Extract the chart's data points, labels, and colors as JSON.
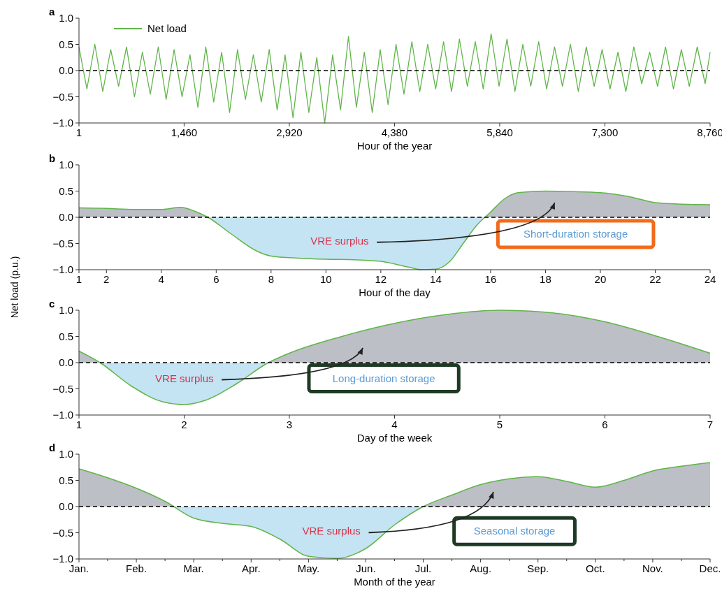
{
  "chart_data": [
    {
      "type": "line",
      "title": "a",
      "xlabel": "Hour of the year",
      "legend": "top left",
      "xlim": [
        1,
        8760
      ],
      "xticks": [
        1,
        {
          "value": 1460,
          "label": "1,460"
        },
        {
          "value": 2920,
          "label": "2,920"
        },
        {
          "value": 4380,
          "label": "4,380"
        },
        {
          "value": 5840,
          "label": "5,840"
        },
        {
          "value": 7300,
          "label": "7,300"
        },
        {
          "value": 8760,
          "label": "8,760"
        }
      ],
      "ylim": [
        -1,
        1
      ],
      "yticks": [
        {
          "value": -1,
          "label": "−1.0"
        },
        {
          "value": -0.5,
          "label": "−0.5"
        },
        {
          "value": 0,
          "label": "0.0"
        },
        {
          "value": 0.5,
          "label": "0.5"
        },
        {
          "value": 1,
          "label": "1.0"
        }
      ],
      "ref_lines": [
        {
          "axis": "y",
          "value": 0,
          "color": "#000000",
          "line_style": "dashed"
        }
      ],
      "series": [
        {
          "name": "Net load",
          "color": "#5fb548",
          "x": [
            1,
            111,
            221,
            331,
            441,
            551,
            661,
            771,
            881,
            991,
            1101,
            1211,
            1321,
            1431,
            1541,
            1651,
            1761,
            1871,
            1981,
            2091,
            2201,
            2311,
            2421,
            2531,
            2641,
            2751,
            2861,
            2971,
            3081,
            3191,
            3301,
            3411,
            3521,
            3631,
            3741,
            3851,
            3961,
            4071,
            4181,
            4291,
            4401,
            4511,
            4621,
            4731,
            4841,
            4951,
            5061,
            5171,
            5281,
            5391,
            5501,
            5611,
            5721,
            5831,
            5941,
            6051,
            6161,
            6271,
            6381,
            6491,
            6601,
            6711,
            6821,
            6931,
            7041,
            7151,
            7261,
            7371,
            7481,
            7591,
            7701,
            7811,
            7921,
            8031,
            8141,
            8251,
            8361,
            8471,
            8581,
            8691,
            8760
          ],
          "values": [
            0.45,
            -0.35,
            0.5,
            -0.4,
            0.4,
            -0.3,
            0.45,
            -0.5,
            0.35,
            -0.45,
            0.45,
            -0.55,
            0.4,
            -0.5,
            0.3,
            -0.7,
            0.45,
            -0.6,
            0.35,
            -0.8,
            0.4,
            -0.55,
            0.3,
            -0.6,
            0.4,
            -0.75,
            0.3,
            -0.9,
            0.35,
            -0.8,
            0.25,
            -1.0,
            0.3,
            -0.75,
            0.65,
            -0.7,
            0.35,
            -0.8,
            0.4,
            -0.65,
            0.5,
            -0.45,
            0.55,
            -0.4,
            0.5,
            -0.35,
            0.55,
            -0.4,
            0.6,
            -0.3,
            0.55,
            -0.35,
            0.7,
            -0.3,
            0.6,
            -0.4,
            0.5,
            -0.3,
            0.55,
            -0.35,
            0.45,
            -0.3,
            0.5,
            -0.4,
            0.45,
            -0.3,
            0.4,
            -0.35,
            0.35,
            -0.4,
            0.45,
            -0.25,
            0.35,
            -0.3,
            0.45,
            -0.35,
            0.4,
            -0.3,
            0.45,
            -0.25,
            0.35
          ]
        }
      ]
    },
    {
      "type": "area",
      "title": "b",
      "xlabel": "Hour of the day",
      "ylabel": "Net load (p.u.)",
      "xlim": [
        1,
        24
      ],
      "xticks": [
        1,
        2,
        4,
        6,
        8,
        10,
        12,
        14,
        16,
        18,
        20,
        22,
        24
      ],
      "ylim": [
        -1,
        1
      ],
      "yticks": [
        {
          "value": -1,
          "label": "−1.0"
        },
        {
          "value": -0.5,
          "label": "−0.5"
        },
        {
          "value": 0,
          "label": "0.0"
        },
        {
          "value": 0.5,
          "label": "0.5"
        },
        {
          "value": 1,
          "label": "1.0"
        }
      ],
      "ref_lines": [
        {
          "axis": "y",
          "value": 0,
          "color": "#000000",
          "line_style": "dashed"
        }
      ],
      "annotations": [
        "VRE surplus",
        "Short-duration storage"
      ],
      "series": [
        {
          "color": "#5fb548",
          "x": [
            1,
            2,
            3,
            4,
            4.7,
            5.2,
            5.7,
            6.5,
            7.5,
            8,
            9,
            10,
            11,
            12,
            13,
            13.5,
            14,
            14.5,
            15,
            15.5,
            16,
            16.5,
            17,
            18,
            19,
            20,
            21,
            22,
            23,
            24
          ],
          "values": [
            0.18,
            0.17,
            0.15,
            0.15,
            0.19,
            0.12,
            0,
            -0.3,
            -0.65,
            -0.74,
            -0.78,
            -0.8,
            -0.81,
            -0.84,
            -0.95,
            -1.0,
            -0.99,
            -0.85,
            -0.5,
            -0.15,
            0.1,
            0.35,
            0.47,
            0.5,
            0.49,
            0.47,
            0.4,
            0.28,
            0.25,
            0.24
          ]
        }
      ]
    },
    {
      "type": "area",
      "title": "c",
      "xlabel": "Day of the week",
      "xlim": [
        1,
        7
      ],
      "xticks": [
        1,
        2,
        3,
        4,
        5,
        6,
        7
      ],
      "ylim": [
        -1,
        1
      ],
      "yticks": [
        {
          "value": -1,
          "label": "−1.0"
        },
        {
          "value": -0.5,
          "label": "−0.5"
        },
        {
          "value": 0,
          "label": "0.0"
        },
        {
          "value": 0.5,
          "label": "0.5"
        },
        {
          "value": 1,
          "label": "1.0"
        }
      ],
      "ref_lines": [
        {
          "axis": "y",
          "value": 0,
          "color": "#000000",
          "line_style": "dashed"
        }
      ],
      "annotations": [
        "VRE surplus",
        "Long-duration storage"
      ],
      "series": [
        {
          "color": "#5fb548",
          "x": [
            1,
            1.2,
            1.5,
            1.8,
            2,
            2.2,
            2.5,
            2.8,
            3,
            3.5,
            4,
            4.5,
            5,
            5.5,
            6,
            6.5,
            7
          ],
          "values": [
            0.22,
            0,
            -0.45,
            -0.75,
            -0.8,
            -0.72,
            -0.4,
            0,
            0.18,
            0.5,
            0.75,
            0.92,
            1.0,
            0.95,
            0.78,
            0.5,
            0.18
          ]
        }
      ]
    },
    {
      "type": "area",
      "title": "d",
      "xlabel": "Month of the year",
      "categories": [
        "Jan.",
        null,
        "Feb.",
        null,
        "Mar.",
        null,
        "Apr.",
        null,
        "May.",
        null,
        "Jun.",
        null,
        "Jul.",
        null,
        "Aug.",
        null,
        "Sep.",
        null,
        "Oct.",
        null,
        "Nov.",
        null,
        "Dec."
      ],
      "ylim": [
        -1,
        1
      ],
      "yticks": [
        {
          "value": -1,
          "label": "−1.0"
        },
        {
          "value": -0.5,
          "label": "−0.5"
        },
        {
          "value": 0,
          "label": "0.0"
        },
        {
          "value": 0.5,
          "label": "0.5"
        },
        {
          "value": 1,
          "label": "1.0"
        }
      ],
      "ref_lines": [
        {
          "axis": "y",
          "value": 0,
          "color": "#000000",
          "line_style": "dashed"
        }
      ],
      "annotations": [
        "VRE surplus",
        "Seasonal storage"
      ],
      "series": [
        {
          "color": "#5fb548",
          "values": [
            0.72,
            0.55,
            0.35,
            0.1,
            -0.22,
            -0.32,
            -0.38,
            -0.62,
            -0.95,
            -0.99,
            -0.8,
            -0.35,
            0,
            0.22,
            0.42,
            0.53,
            0.57,
            0.48,
            0.37,
            0.5,
            0.68,
            0.77,
            0.84
          ]
        }
      ]
    }
  ]
}
